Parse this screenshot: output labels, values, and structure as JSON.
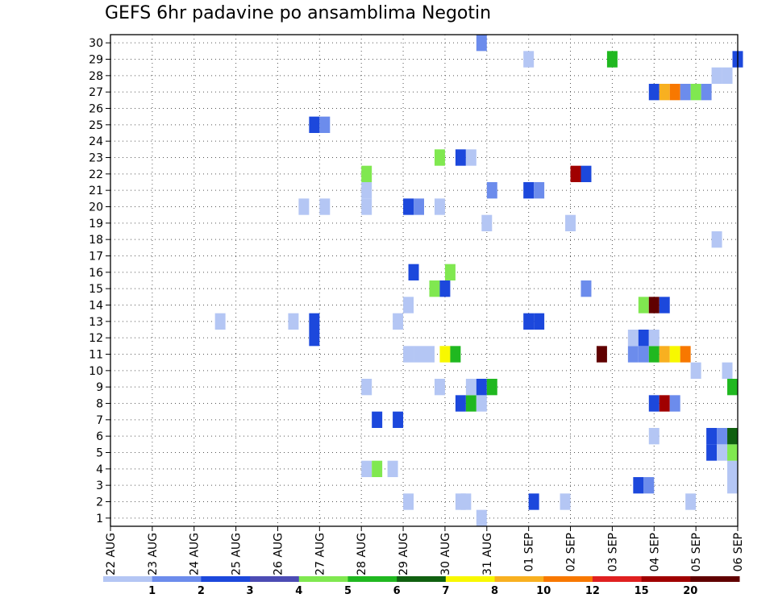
{
  "chart_data": {
    "type": "heatmap",
    "title": "GEFS 6hr padavine po ansamblima Negotin",
    "x_ticks": [
      "22 AUG",
      "23 AUG",
      "24 AUG",
      "25 AUG",
      "26 AUG",
      "27 AUG",
      "28 AUG",
      "29 AUG",
      "30 AUG",
      "31 AUG",
      "01 SEP",
      "02 SEP",
      "03 SEP",
      "04 SEP",
      "05 SEP",
      "06 SEP"
    ],
    "y_ticks": [
      1,
      2,
      3,
      4,
      5,
      6,
      7,
      8,
      9,
      10,
      11,
      12,
      13,
      14,
      15,
      16,
      17,
      18,
      19,
      20,
      21,
      22,
      23,
      24,
      25,
      26,
      27,
      28,
      29,
      30
    ],
    "xlim": [
      0,
      60
    ],
    "ylim": [
      0.5,
      30.5
    ],
    "grid": true,
    "legend_position": "bottom",
    "legend_labels": [
      "1",
      "2",
      "3",
      "4",
      "5",
      "6",
      "7",
      "8",
      "10",
      "12",
      "15",
      "20"
    ],
    "colors": [
      "#b4c6f4",
      "#6c8cec",
      "#1c48dc",
      "#4c4cb4",
      "#80e850",
      "#20b820",
      "#106010",
      "#f8f800",
      "#f8b020",
      "#f87800",
      "#e02020",
      "#a00000",
      "#600000"
    ],
    "cells": [
      [
        35.5,
        1,
        1
      ],
      [
        28.5,
        2,
        1
      ],
      [
        33.5,
        2,
        1
      ],
      [
        34,
        2,
        1
      ],
      [
        40.5,
        2,
        3
      ],
      [
        43.5,
        2,
        1
      ],
      [
        55.5,
        2,
        1
      ],
      [
        50.5,
        3,
        3
      ],
      [
        51.5,
        3,
        2
      ],
      [
        59.5,
        3,
        1
      ],
      [
        24.5,
        4,
        1
      ],
      [
        25.5,
        4,
        5
      ],
      [
        27,
        4,
        1
      ],
      [
        59.5,
        4,
        1
      ],
      [
        57.5,
        5,
        3
      ],
      [
        58.5,
        5,
        1
      ],
      [
        59.5,
        5,
        5
      ],
      [
        52,
        6,
        1
      ],
      [
        57.5,
        6,
        3
      ],
      [
        58.5,
        6,
        2
      ],
      [
        59.5,
        6,
        7
      ],
      [
        25.5,
        7,
        3
      ],
      [
        27.5,
        7,
        3
      ],
      [
        33.5,
        8,
        3
      ],
      [
        34.5,
        8,
        6
      ],
      [
        35.5,
        8,
        1
      ],
      [
        52,
        8,
        3
      ],
      [
        53,
        8,
        12
      ],
      [
        54,
        8,
        2
      ],
      [
        24.5,
        9,
        1
      ],
      [
        31.5,
        9,
        1
      ],
      [
        34.5,
        9,
        1
      ],
      [
        35.5,
        9,
        3
      ],
      [
        36.5,
        9,
        6
      ],
      [
        59.5,
        9,
        6
      ],
      [
        56,
        10,
        1
      ],
      [
        59,
        10,
        1
      ],
      [
        28.5,
        11,
        1
      ],
      [
        29.5,
        11,
        1
      ],
      [
        30.5,
        11,
        1
      ],
      [
        32,
        11,
        8
      ],
      [
        33,
        11,
        6
      ],
      [
        47,
        11,
        13
      ],
      [
        50,
        11,
        2
      ],
      [
        51,
        11,
        2
      ],
      [
        52,
        11,
        6
      ],
      [
        53,
        11,
        9
      ],
      [
        54,
        11,
        8
      ],
      [
        55,
        11,
        10
      ],
      [
        19.5,
        12,
        3
      ],
      [
        50,
        12,
        1
      ],
      [
        51,
        12,
        3
      ],
      [
        52,
        12,
        1
      ],
      [
        10.5,
        13,
        1
      ],
      [
        17.5,
        13,
        1
      ],
      [
        19.5,
        13,
        3
      ],
      [
        27.5,
        13,
        1
      ],
      [
        40,
        13,
        3
      ],
      [
        41,
        13,
        3
      ],
      [
        28.5,
        14,
        1
      ],
      [
        51,
        14,
        5
      ],
      [
        52,
        14,
        13
      ],
      [
        53,
        14,
        3
      ],
      [
        31,
        15,
        5
      ],
      [
        32,
        15,
        3
      ],
      [
        45.5,
        15,
        2
      ],
      [
        29,
        16,
        3
      ],
      [
        32.5,
        16,
        5
      ],
      [
        58,
        18,
        1
      ],
      [
        36,
        19,
        1
      ],
      [
        44,
        19,
        1
      ],
      [
        18.5,
        20,
        1
      ],
      [
        20.5,
        20,
        1
      ],
      [
        24.5,
        20,
        1
      ],
      [
        28.5,
        20,
        3
      ],
      [
        29.5,
        20,
        2
      ],
      [
        31.5,
        20,
        1
      ],
      [
        24.5,
        21,
        1
      ],
      [
        36.5,
        21,
        2
      ],
      [
        40,
        21,
        3
      ],
      [
        41,
        21,
        2
      ],
      [
        24.5,
        22,
        5
      ],
      [
        44.5,
        22,
        12
      ],
      [
        45.5,
        22,
        3
      ],
      [
        31.5,
        23,
        5
      ],
      [
        33.5,
        23,
        3
      ],
      [
        34.5,
        23,
        1
      ],
      [
        19.5,
        25,
        3
      ],
      [
        20.5,
        25,
        2
      ],
      [
        52,
        27,
        3
      ],
      [
        53,
        27,
        9
      ],
      [
        54,
        27,
        10
      ],
      [
        55,
        27,
        2
      ],
      [
        56,
        27,
        5
      ],
      [
        57,
        27,
        2
      ],
      [
        58,
        28,
        1
      ],
      [
        59,
        28,
        1
      ],
      [
        40,
        29,
        1
      ],
      [
        48,
        29,
        6
      ],
      [
        60,
        29,
        3
      ],
      [
        35.5,
        30,
        2
      ]
    ]
  }
}
